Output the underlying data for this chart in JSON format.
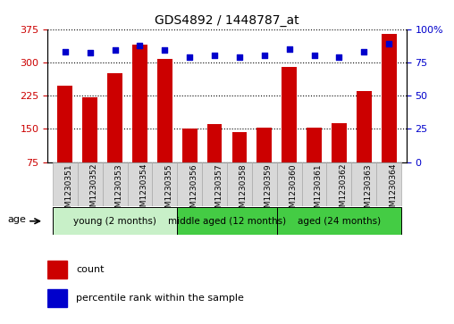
{
  "title": "GDS4892 / 1448787_at",
  "samples": [
    "GSM1230351",
    "GSM1230352",
    "GSM1230353",
    "GSM1230354",
    "GSM1230355",
    "GSM1230356",
    "GSM1230357",
    "GSM1230358",
    "GSM1230359",
    "GSM1230360",
    "GSM1230361",
    "GSM1230362",
    "GSM1230363",
    "GSM1230364"
  ],
  "counts": [
    248,
    222,
    275,
    340,
    308,
    150,
    160,
    143,
    152,
    290,
    153,
    162,
    235,
    365
  ],
  "percentile_ranks": [
    83,
    82,
    84,
    88,
    84,
    79,
    80,
    79,
    80,
    85,
    80,
    79,
    83,
    89
  ],
  "ylim_left": [
    75,
    375
  ],
  "yticks_left": [
    75,
    150,
    225,
    300,
    375
  ],
  "ylim_right": [
    0,
    100
  ],
  "yticks_right": [
    0,
    25,
    50,
    75,
    100
  ],
  "bar_color": "#cc0000",
  "dot_color": "#0000cc",
  "background_color": "#ffffff",
  "title_fontsize": 10,
  "tick_label_fontsize": 6.5,
  "axis_label_color_left": "#cc0000",
  "axis_label_color_right": "#0000cc",
  "grid_color": "#000000",
  "group_label_young": "young (2 months)",
  "group_label_middle": "middle aged (12 months)",
  "group_label_aged": "aged (24 months)",
  "group_color_young": "#c8f0c8",
  "group_color_middle": "#44cc44",
  "group_color_aged": "#44cc44",
  "xtick_box_color": "#d8d8d8",
  "age_label": "age"
}
